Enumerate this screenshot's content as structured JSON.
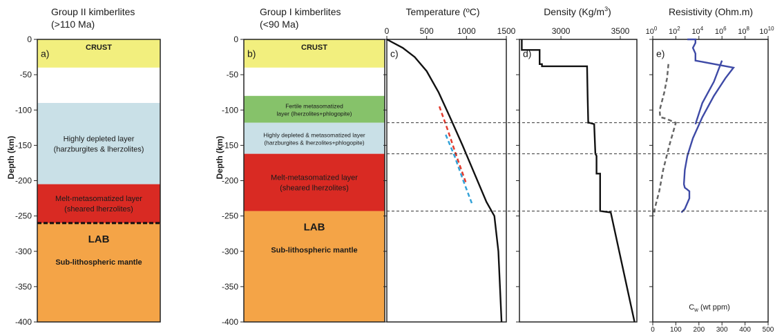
{
  "columns": {
    "a": {
      "title": "Group II kimberlites",
      "subtitle": "(>110 Ma)",
      "panel_label": "a)",
      "layers": [
        {
          "top": 0,
          "bottom": -40,
          "color": "#f2ef7e",
          "lines": [
            "CRUST"
          ],
          "weight": "bold",
          "size": "normal"
        },
        {
          "top": -40,
          "bottom": -90,
          "color": "#ffffff",
          "lines": [],
          "weight": "normal",
          "size": "normal"
        },
        {
          "top": -90,
          "bottom": -205,
          "color": "#c9e0e7",
          "lines": [
            "Highly depleted layer",
            "(harzburgites & lherzolites)"
          ],
          "weight": "normal",
          "size": "normal"
        },
        {
          "top": -205,
          "bottom": -260,
          "color": "#d92a23",
          "lines": [
            "Melt-metasomatized layer",
            "(sheared lherzolites)"
          ],
          "weight": "normal",
          "size": "normal"
        },
        {
          "top": -260,
          "bottom": -400,
          "color": "#f4a447",
          "lines": [
            "LAB",
            "Sub-lithospheric mantle"
          ],
          "weight": "bold",
          "size": "normal"
        }
      ],
      "lab_depth": -260
    },
    "b": {
      "title": "Group I kimberlites",
      "subtitle": "(<90 Ma)",
      "panel_label": "b)",
      "layers": [
        {
          "top": 0,
          "bottom": -40,
          "color": "#f2ef7e",
          "lines": [
            "CRUST"
          ],
          "weight": "bold",
          "size": "normal"
        },
        {
          "top": -40,
          "bottom": -80,
          "color": "#ffffff",
          "lines": [],
          "weight": "normal",
          "size": "normal"
        },
        {
          "top": -80,
          "bottom": -118,
          "color": "#86c26a",
          "lines": [
            "Fertile metasomatized",
            "layer (lherzolites+phlogopite)"
          ],
          "weight": "normal",
          "size": "small"
        },
        {
          "top": -118,
          "bottom": -162,
          "color": "#c9e0e7",
          "lines": [
            "Highly depleted & metasomatized layer",
            "(harzburgites & lherzolites+phlogopite)"
          ],
          "weight": "normal",
          "size": "small"
        },
        {
          "top": -162,
          "bottom": -243,
          "color": "#d92a23",
          "lines": [
            "Melt-metasomatized layer",
            "(sheared lherzolites)"
          ],
          "weight": "normal",
          "size": "normal"
        },
        {
          "top": -243,
          "bottom": -400,
          "color": "#f4a447",
          "lines": [
            "LAB",
            "Sub-lithospheric mantle"
          ],
          "weight": "bold",
          "size": "normal"
        }
      ]
    }
  },
  "depth_axis": {
    "label": "Depth (km)",
    "ticks": [
      "0",
      "-50",
      "-100",
      "-150",
      "-200",
      "-250",
      "-300",
      "-350",
      "-400"
    ],
    "tick_values": [
      0,
      -50,
      -100,
      -150,
      -200,
      -250,
      -300,
      -350,
      -400
    ]
  },
  "dashed_boundaries": [
    -118,
    -162,
    -243
  ],
  "chart_data": [
    {
      "type": "line",
      "panel_label": "c)",
      "title": "Temperature (ºC)",
      "xlim": [
        0,
        1500
      ],
      "ylim": [
        -400,
        0
      ],
      "x_ticks": [
        "0",
        "500",
        "1000",
        "1500"
      ],
      "x_tick_values": [
        0,
        500,
        1000,
        1500
      ],
      "series": [
        {
          "color": "#111111",
          "style": "solid",
          "x": [
            0,
            200,
            350,
            500,
            650,
            800,
            950,
            1100,
            1250,
            1350,
            1400,
            1420,
            1440
          ],
          "y": [
            0,
            -12,
            -25,
            -45,
            -75,
            -112,
            -150,
            -190,
            -230,
            -250,
            -300,
            -350,
            -400
          ]
        },
        {
          "color": "#e23b2e",
          "style": "dashed",
          "x": [
            660,
            770,
            880,
            990
          ],
          "y": [
            -95,
            -130,
            -167,
            -202
          ]
        },
        {
          "color": "#33a2d8",
          "style": "dashed",
          "x": [
            740,
            850,
            960,
            1070
          ],
          "y": [
            -135,
            -165,
            -200,
            -233
          ]
        }
      ]
    },
    {
      "type": "line",
      "panel_label": "d)",
      "title": "Density (Kg/m³)",
      "title_main": "Density (Kg/m",
      "title_sup": "3",
      "title_end": ")",
      "xlim": [
        2650,
        3640
      ],
      "ylim": [
        -400,
        0
      ],
      "x_ticks": [
        "3000",
        "3500"
      ],
      "x_tick_values": [
        3000,
        3500
      ],
      "series": [
        {
          "color": "#111111",
          "style": "solid",
          "x": [
            2670,
            2670,
            2820,
            2820,
            2840,
            2840,
            3220,
            3225,
            3230,
            3240,
            3280,
            3290,
            3300,
            3300,
            3330,
            3330,
            3420,
            3620
          ],
          "y": [
            0,
            -15,
            -15,
            -35,
            -35,
            -38,
            -38,
            -80,
            -118,
            -118,
            -120,
            -162,
            -165,
            -190,
            -190,
            -243,
            -245,
            -400
          ]
        }
      ]
    },
    {
      "type": "line",
      "panel_label": "e)",
      "title": "Resistivity (Ohm.m)",
      "xscale": "log",
      "xlim": [
        1,
        10000000000
      ],
      "ylim": [
        -400,
        0
      ],
      "x_ticks_base": [
        "10",
        "10",
        "10",
        "10",
        "10",
        "10"
      ],
      "x_ticks_exp": [
        "0",
        "2",
        "4",
        "6",
        "8",
        "10"
      ],
      "x_tick_values": [
        1,
        100,
        10000,
        1000000,
        100000000,
        10000000000
      ],
      "secondary_axis": {
        "label": "C",
        "label_sub": "w",
        "label_end": " (wt ppm)",
        "ticks": [
          "0",
          "100",
          "200",
          "300",
          "400",
          "500"
        ],
        "tick_values": [
          0,
          100,
          200,
          300,
          400,
          500
        ],
        "xlim": [
          0,
          500
        ]
      },
      "series": [
        {
          "color": "#3e4aa6",
          "style": "solid",
          "axis": "resistivity",
          "x": [
            1000,
            5000,
            5000,
            3000,
            5000,
            5000,
            10000000,
            2000000,
            200000,
            20000,
            3000,
            1000,
            600,
            500,
            600,
            900,
            1500,
            1500,
            600,
            300
          ],
          "y": [
            0,
            0,
            -5,
            -12,
            -20,
            -30,
            -40,
            -55,
            -80,
            -110,
            -140,
            -165,
            -185,
            -205,
            -210,
            -212,
            -215,
            -225,
            -240,
            -245
          ]
        },
        {
          "color": "#3e4aa6",
          "style": "solid",
          "axis": "resistivity",
          "x": [
            1000000,
            200000,
            20000,
            5000
          ],
          "y": [
            -30,
            -60,
            -90,
            -120
          ]
        },
        {
          "color": "#666666",
          "style": "dashed",
          "axis": "water",
          "x": [
            68,
            62,
            50,
            30,
            32,
            55,
            100,
            72,
            45,
            28,
            8,
            5
          ],
          "y": [
            -35,
            -55,
            -75,
            -100,
            -110,
            -112,
            -118,
            -150,
            -185,
            -215,
            -240,
            -250
          ]
        }
      ],
      "annotation": "Cw (wt ppm)"
    }
  ]
}
